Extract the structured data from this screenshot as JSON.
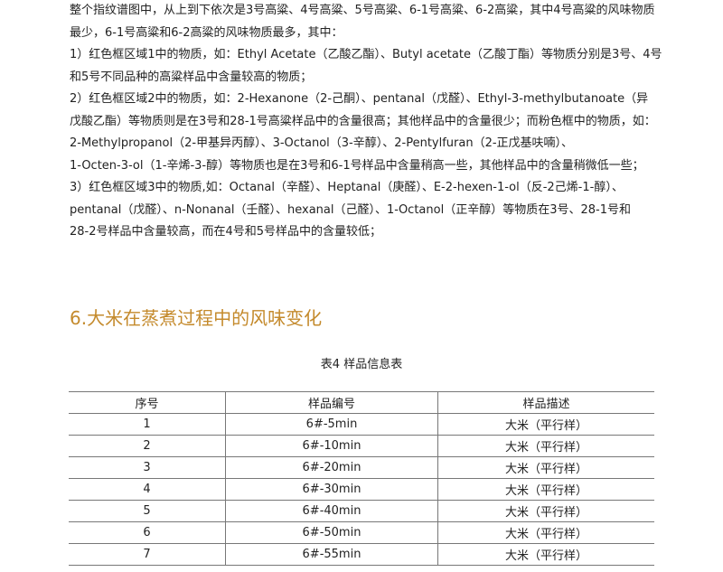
{
  "paragraphs": [
    "整个指纹谱图中，从上到下依次是3号高粱、4号高粱、5号高粱、6-1号高粱、6-2高粱，其中4号高粱的风味物质",
    "最少，6-1号高粱和6-2高粱的风味物质最多，其中：",
    "1）红色框区域1中的物质，如：Ethyl Acetate（乙酸乙酯）、Butyl acetate（乙酸丁酯）等物质分别是3号、4号",
    "和5号不同品种的高粱样品中含量较高的物质；",
    "2）红色框区域2中的物质，如：2-Hexanone（2-己酮）、pentanal（戊醛）、Ethyl-3-methylbutanoate（异",
    "戊酸乙酯）等物质则是在3号和28-1号高粱样品中的含量很高；其他样品中的含量很少；而粉色框中的物质，如：",
    "2-Methylpropanol（2-甲基异丙醇）、3-Octanol（3-辛醇）、2-Pentylfuran（2-正戊基呋喃）、",
    "1-Octen-3-ol（1-辛烯-3-醇）等物质也是在3号和6-1号样品中含量稍高一些，其他样品中的含量稍微低一些；",
    "3）红色框区域3中的物质,如：Octanal（辛醛）、Heptanal（庚醛）、E-2-hexen-1-ol（反-2己烯-1-醇）、",
    "pentanal（戊醛）、n-Nonanal（壬醛）、hexanal（己醛）、1-Octanol（正辛醇）等物质在3号、28-1号和",
    "28-2号样品中含量较高，而在4号和5号样品中的含量较低；"
  ],
  "section_heading": "6.大米在蒸煮过程中的风味变化",
  "heading_color": "#c48a2c",
  "table": {
    "caption": "表4  样品信息表",
    "headers": [
      "序号",
      "样品编号",
      "样品描述"
    ],
    "rows": [
      [
        "1",
        "6#-5min",
        "大米（平行样）"
      ],
      [
        "2",
        "6#-10min",
        "大米（平行样）"
      ],
      [
        "3",
        "6#-20min",
        "大米（平行样）"
      ],
      [
        "4",
        "6#-30min",
        "大米（平行样）"
      ],
      [
        "5",
        "6#-40min",
        "大米（平行样）"
      ],
      [
        "6",
        "6#-50min",
        "大米（平行样）"
      ],
      [
        "7",
        "6#-55min",
        "大米（平行样）"
      ]
    ]
  }
}
